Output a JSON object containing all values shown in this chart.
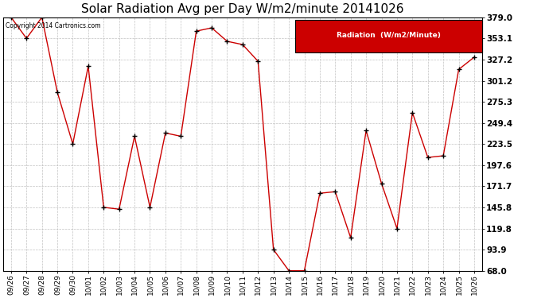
{
  "title": "Solar Radiation Avg per Day W/m2/minute 20141026",
  "copyright_text": "Copyright 2014 Cartronics.com",
  "legend_label": "Radiation  (W/m2/Minute)",
  "x_labels": [
    "09/26",
    "09/27",
    "09/28",
    "09/29",
    "09/30",
    "10/01",
    "10/02",
    "10/03",
    "10/04",
    "10/05",
    "10/06",
    "10/07",
    "10/08",
    "10/09",
    "10/10",
    "10/11",
    "10/12",
    "10/13",
    "10/14",
    "10/15",
    "10/16",
    "10/17",
    "10/18",
    "10/19",
    "10/20",
    "10/21",
    "10/22",
    "10/23",
    "10/24",
    "10/25",
    "10/26"
  ],
  "y_values": [
    379.0,
    353.1,
    379.0,
    287.0,
    223.5,
    319.0,
    145.8,
    143.5,
    233.0,
    145.8,
    237.0,
    233.0,
    362.0,
    366.0,
    349.5,
    345.5,
    325.0,
    93.9,
    68.0,
    68.0,
    163.0,
    165.0,
    108.5,
    240.0,
    175.0,
    119.8,
    262.0,
    207.0,
    209.0,
    315.0,
    330.0
  ],
  "y_min": 68.0,
  "y_max": 379.0,
  "y_ticks": [
    379.0,
    353.1,
    327.2,
    301.2,
    275.3,
    249.4,
    223.5,
    197.6,
    171.7,
    145.8,
    119.8,
    93.9,
    68.0
  ],
  "line_color": "#cc0000",
  "marker_color": "#000000",
  "grid_color": "#bbbbbb",
  "bg_color": "#ffffff",
  "plot_bg_color": "#ffffff",
  "title_fontsize": 11,
  "legend_bg": "#cc0000",
  "legend_text_color": "#ffffff",
  "fig_width": 6.9,
  "fig_height": 3.75
}
